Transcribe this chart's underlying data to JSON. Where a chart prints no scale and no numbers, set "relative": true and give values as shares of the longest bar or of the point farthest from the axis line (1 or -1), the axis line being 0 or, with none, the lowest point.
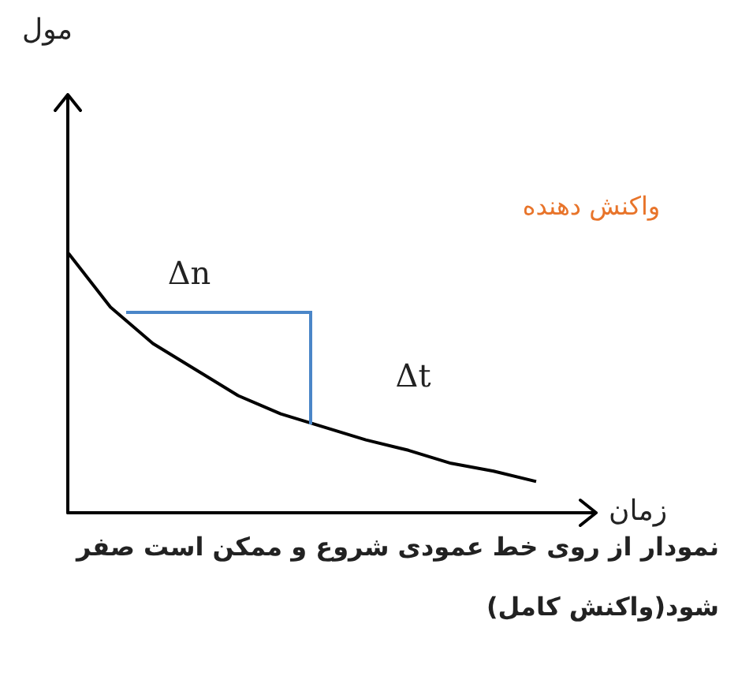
{
  "chart_data": {
    "type": "line",
    "relative": true,
    "xlabel": "زمان",
    "tick_labels": false,
    "grid": false,
    "legend": false,
    "marker": "none",
    "categories": [
      null,
      null,
      null,
      null,
      null,
      null,
      null,
      null,
      null,
      null,
      null,
      null
    ],
    "series": [
      {
        "color": "#000000",
        "values": [
          1,
          0.79,
          0.65,
          0.55,
          0.45,
          0.38,
          0.33,
          0.28,
          0.24,
          0.19,
          0.16,
          0.12
        ]
      }
    ],
    "annotations": [
      "مول",
      "Δn",
      "Δt",
      "واکنش دهنده",
      "نمودار از روی خط عمودی شروع و ممکن است صفر شود(واکنش کامل)"
    ]
  }
}
